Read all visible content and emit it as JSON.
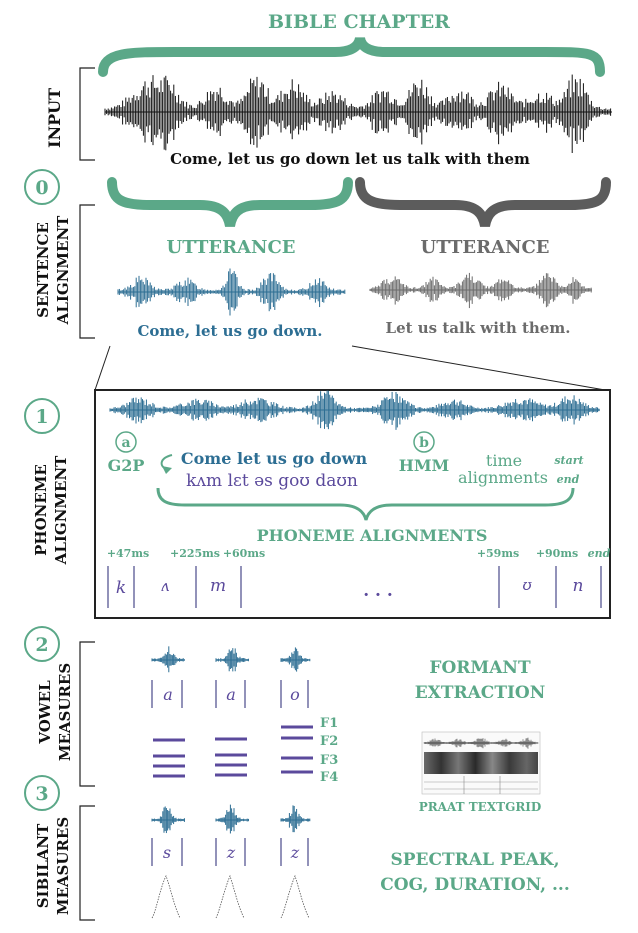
{
  "colors": {
    "teal": "#5ba888",
    "blue": "#2d6e93",
    "purple": "#5b4a9c",
    "gray": "#6b6b6b",
    "black": "#111111",
    "line": "#222222"
  },
  "top": {
    "title": "BIBLE CHAPTER",
    "section_label": "INPUT",
    "sentence": "Come, let us go down let us talk with them"
  },
  "steps": [
    "0",
    "1",
    "2",
    "3"
  ],
  "sentence_alignment": {
    "label_line1": "SENTENCE",
    "label_line2": "ALIGNMENT",
    "left": {
      "title": "UTTERANCE",
      "text": "Come, let us go down."
    },
    "right": {
      "title": "UTTERANCE",
      "text": "Let us talk with them."
    }
  },
  "phoneme_alignment": {
    "label_line1": "PHONEME",
    "label_line2": "ALIGNMENT",
    "g2p_marker": "a",
    "g2p_label": "G2P",
    "words": "Come let us go down",
    "ipa": "kʌm lɛt əs goʊ daʊn",
    "hmm_marker": "b",
    "hmm_label": "HMM",
    "time_line1": "time",
    "time_line2": "alignments",
    "start_label": "start",
    "end_label": "end",
    "result_title": "PHONEME ALIGNMENTS",
    "timings": [
      "+47ms",
      "+225ms",
      "+60ms",
      "+59ms",
      "+90ms",
      "end"
    ],
    "phonemes": [
      "k",
      "ʌ",
      "m",
      "ʊ",
      "n"
    ],
    "ellipsis": ". . ."
  },
  "vowel_measures": {
    "label_line1": "VOWEL",
    "label_line2": "MEASURES",
    "vowels": [
      "a",
      "a",
      "o"
    ],
    "formants": [
      "F1",
      "F2",
      "F3",
      "F4"
    ],
    "title_line1": "FORMANT",
    "title_line2": "EXTRACTION",
    "praat_label": "PRAAT TEXTGRID"
  },
  "sibilant_measures": {
    "label_line1": "SIBILANT",
    "label_line2": "MEASURES",
    "sibilants": [
      "s",
      "z",
      "z"
    ],
    "title_line1": "SPECTRAL PEAK,",
    "title_line2": "COG, DURATION, ..."
  }
}
